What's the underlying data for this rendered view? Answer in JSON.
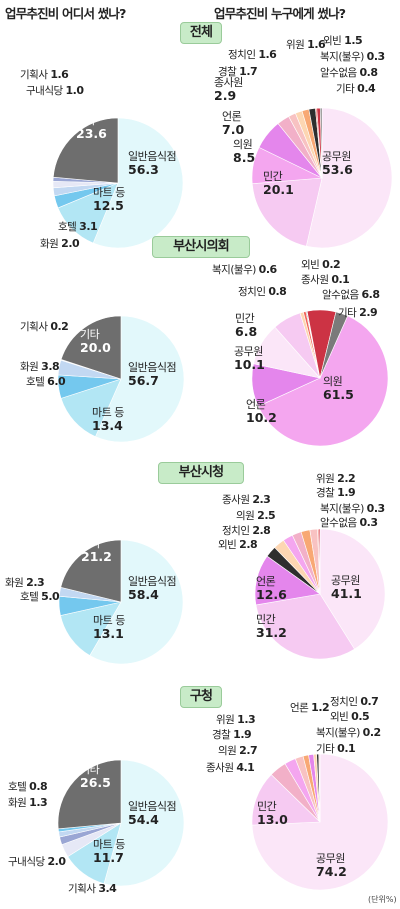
{
  "titles": {
    "left": "업무추진비 어디서 썼나?",
    "right": "업무추진비 누구에게 썼나?"
  },
  "unit_note": "(단위%)",
  "colors": {
    "badge_fill": "#c8ebc8",
    "badge_border": "#9acb9a",
    "general_restaurant": "#e2f8fb",
    "mart": "#b2e6f4",
    "hotel": "#74c8ee",
    "flower": "#c2d8f2",
    "agency": "#e6e8f6",
    "cafeteria": "#9aa6d4",
    "venue_etc": "#6e6e6e",
    "official": "#fbe6f8",
    "private": "#f6caf2",
    "council": "#f4a6ef",
    "press": "#e486ec",
    "employee": "#f2b0c8",
    "police": "#f8c2c2",
    "politician": "#fdd6b2",
    "member": "#f8a874",
    "bokji": "#f1645a",
    "unknown": "#cc3344",
    "outside": "#2e2e2e",
    "etc_other": "#7a7a7a"
  },
  "chart_data": [
    {
      "type": "pie",
      "section": "전체",
      "title": "업무추진비 어디서 썼나?",
      "slices": [
        {
          "label": "일반음식점",
          "value": 56.3
        },
        {
          "label": "마트 등",
          "value": 12.5
        },
        {
          "label": "호텔",
          "value": 3.1
        },
        {
          "label": "화원",
          "value": 2.0
        },
        {
          "label": "기획사",
          "value": 1.6
        },
        {
          "label": "구내식당",
          "value": 1.0
        },
        {
          "label": "기타",
          "value": 23.6
        }
      ]
    },
    {
      "type": "pie",
      "section": "전체",
      "title": "업무추진비 누구에게 썼나?",
      "slices": [
        {
          "label": "공무원",
          "value": 53.6
        },
        {
          "label": "민간",
          "value": 20.1
        },
        {
          "label": "의원",
          "value": 8.5
        },
        {
          "label": "언론",
          "value": 7.0
        },
        {
          "label": "종사원",
          "value": 2.9
        },
        {
          "label": "경찰",
          "value": 1.7
        },
        {
          "label": "정치인",
          "value": 1.6
        },
        {
          "label": "위원",
          "value": 1.6
        },
        {
          "label": "외빈",
          "value": 1.5
        },
        {
          "label": "복지(불우)",
          "value": 0.3
        },
        {
          "label": "알수없음",
          "value": 0.8
        },
        {
          "label": "기타",
          "value": 0.4
        }
      ]
    },
    {
      "type": "pie",
      "section": "부산시의회",
      "title": "업무추진비 어디서 썼나?",
      "slices": [
        {
          "label": "일반음식점",
          "value": 56.7
        },
        {
          "label": "마트 등",
          "value": 13.4
        },
        {
          "label": "호텔",
          "value": 6.0
        },
        {
          "label": "화원",
          "value": 3.8
        },
        {
          "label": "기획사",
          "value": 0.2
        },
        {
          "label": "기타",
          "value": 20.0
        }
      ]
    },
    {
      "type": "pie",
      "section": "부산시의회",
      "title": "업무추진비 누구에게 썼나?",
      "slices": [
        {
          "label": "의원",
          "value": 61.5
        },
        {
          "label": "언론",
          "value": 10.2
        },
        {
          "label": "공무원",
          "value": 10.1
        },
        {
          "label": "민간",
          "value": 6.8
        },
        {
          "label": "정치인",
          "value": 0.8
        },
        {
          "label": "복지(불우)",
          "value": 0.6
        },
        {
          "label": "외빈",
          "value": 0.2
        },
        {
          "label": "종사원",
          "value": 0.1
        },
        {
          "label": "알수없음",
          "value": 6.8
        },
        {
          "label": "기타",
          "value": 2.9
        }
      ]
    },
    {
      "type": "pie",
      "section": "부산시청",
      "title": "업무추진비 어디서 썼나?",
      "slices": [
        {
          "label": "일반음식점",
          "value": 58.4
        },
        {
          "label": "마트 등",
          "value": 13.1
        },
        {
          "label": "호텔",
          "value": 5.0
        },
        {
          "label": "화원",
          "value": 2.3
        },
        {
          "label": "기타",
          "value": 21.2
        }
      ]
    },
    {
      "type": "pie",
      "section": "부산시청",
      "title": "업무추진비 누구에게 썼나?",
      "slices": [
        {
          "label": "공무원",
          "value": 41.1
        },
        {
          "label": "민간",
          "value": 31.2
        },
        {
          "label": "언론",
          "value": 12.6
        },
        {
          "label": "외빈",
          "value": 2.8
        },
        {
          "label": "정치인",
          "value": 2.8
        },
        {
          "label": "의원",
          "value": 2.5
        },
        {
          "label": "종사원",
          "value": 2.3
        },
        {
          "label": "위원",
          "value": 2.2
        },
        {
          "label": "경찰",
          "value": 1.9
        },
        {
          "label": "복지(불우)",
          "value": 0.3
        },
        {
          "label": "알수없음",
          "value": 0.3
        }
      ]
    },
    {
      "type": "pie",
      "section": "구청",
      "title": "업무추진비 어디서 썼나?",
      "slices": [
        {
          "label": "일반음식점",
          "value": 54.4
        },
        {
          "label": "마트 등",
          "value": 11.7
        },
        {
          "label": "기획사",
          "value": 3.4
        },
        {
          "label": "구내식당",
          "value": 2.0
        },
        {
          "label": "화원",
          "value": 1.3
        },
        {
          "label": "호텔",
          "value": 0.8
        },
        {
          "label": "기타",
          "value": 26.5
        }
      ]
    },
    {
      "type": "pie",
      "section": "구청",
      "title": "업무추진비 누구에게 썼나?",
      "slices": [
        {
          "label": "공무원",
          "value": 74.2
        },
        {
          "label": "민간",
          "value": 13.0
        },
        {
          "label": "종사원",
          "value": 4.1
        },
        {
          "label": "의원",
          "value": 2.7
        },
        {
          "label": "경찰",
          "value": 1.9
        },
        {
          "label": "위원",
          "value": 1.3
        },
        {
          "label": "언론",
          "value": 1.2
        },
        {
          "label": "정치인",
          "value": 0.7
        },
        {
          "label": "외빈",
          "value": 0.5
        },
        {
          "label": "복지(불우)",
          "value": 0.2
        },
        {
          "label": "기타",
          "value": 0.1
        }
      ]
    }
  ]
}
